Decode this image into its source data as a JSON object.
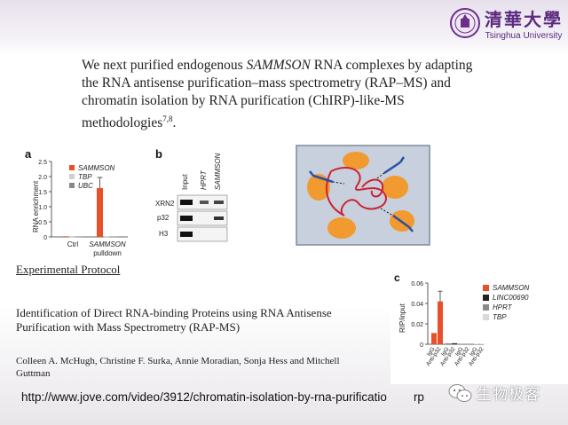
{
  "header": {
    "logo_cn": "清華大學",
    "logo_en": "Tsinghua University",
    "intro_pre": "We next purified endogenous ",
    "intro_em": "SAMMSON",
    "intro_post": " RNA complexes by adapting the RNA antisense purification–mass spectrometry (RAP–MS) and chromatin isolation by RNA purification (ChIRP)-like-MS methodologies",
    "intro_ref": "7,8",
    "intro_end": "."
  },
  "panel_a": {
    "letter": "a",
    "ylabel": "RNA enrichment",
    "yticks": [
      "0",
      "0.5",
      "1.0",
      "1.5",
      "2.0",
      "2.5"
    ],
    "legend": [
      {
        "name": "SAMMSON",
        "color": "#e8502a"
      },
      {
        "name": "TBP",
        "color": "#cfcfcf"
      },
      {
        "name": "UBC",
        "color": "#8a8a8a"
      }
    ],
    "xlabels": [
      "Ctrl",
      "SAMMSON",
      "pulldown"
    ]
  },
  "panel_b": {
    "letter": "b",
    "lanes": [
      "Input",
      "HPRT",
      "SAMMSON"
    ],
    "rows": [
      "XRN2",
      "p32",
      "H3"
    ]
  },
  "protocol": {
    "heading": "Experimental Protocol",
    "title": "Identification of Direct RNA-binding Proteins using RNA Antisense Purification with Mass Spectrometry (RAP-MS)",
    "authors": "Colleen A. McHugh, Christine F. Surka, Annie Moradian, Sonja Hess and Mitchell Guttman"
  },
  "panel_c": {
    "letter": "c",
    "ylabel": "RIP/input",
    "yticks": [
      "0",
      "0.02",
      "0.04",
      "0.06"
    ],
    "legend": [
      {
        "name": "SAMMSON",
        "color": "#e8502a"
      },
      {
        "name": "LINC00690",
        "color": "#222222"
      },
      {
        "name": "HPRT",
        "color": "#8a8a8a"
      },
      {
        "name": "TBP",
        "color": "#d9d9d9"
      }
    ],
    "xlabels": [
      "IgG",
      "Anti-p32",
      "IgG",
      "Anti-p32",
      "IgG",
      "Anti-p32",
      "IgG",
      "Anti-p32"
    ]
  },
  "chart_data": [
    {
      "type": "bar",
      "title": "",
      "ylabel": "RNA enrichment",
      "ylim": [
        0,
        2.5
      ],
      "categories": [
        "Ctrl",
        "SAMMSON pulldown"
      ],
      "series": [
        {
          "name": "SAMMSON",
          "values": [
            0.02,
            1.62
          ]
        },
        {
          "name": "TBP",
          "values": [
            0.01,
            0.01
          ]
        },
        {
          "name": "UBC",
          "values": [
            0.01,
            0.01
          ]
        }
      ]
    },
    {
      "type": "bar",
      "title": "",
      "ylabel": "RIP/input",
      "ylim": [
        0,
        0.06
      ],
      "categories": [
        "IgG",
        "Anti-p32"
      ],
      "series": [
        {
          "name": "SAMMSON",
          "values": [
            0.011,
            0.042
          ]
        },
        {
          "name": "LINC00690",
          "values": [
            0.0005,
            0.001
          ]
        },
        {
          "name": "HPRT",
          "values": [
            0.0005,
            0.0005
          ]
        },
        {
          "name": "TBP",
          "values": [
            0.0005,
            0.0005
          ]
        }
      ]
    }
  ],
  "footer": {
    "url": "http://www.jove.com/video/3912/chromatin-isolation-by-rna-purificatio",
    "url_tail": "rp",
    "watermark": "生物极客"
  }
}
